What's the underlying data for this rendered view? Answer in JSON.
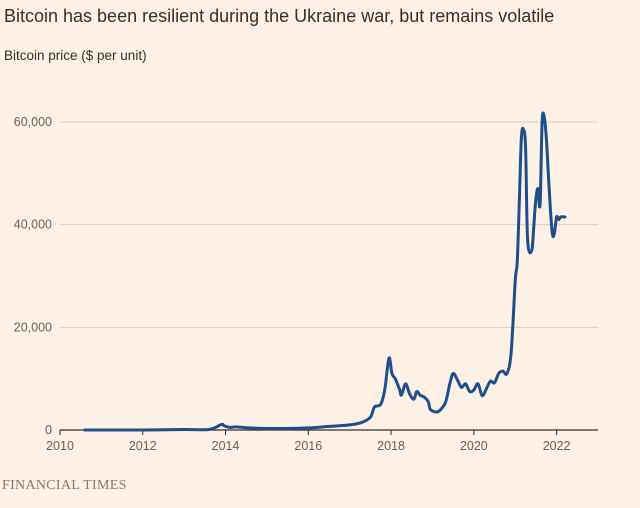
{
  "title": "Bitcoin has been resilient during the Ukraine war, but remains volatile",
  "subtitle": "Bitcoin price ($ per unit)",
  "source": "FINANCIAL TIMES",
  "chart_data": {
    "type": "line",
    "title": "Bitcoin has been resilient during the Ukraine war, but remains volatile",
    "ylabel": "Bitcoin price ($ per unit)",
    "xlabel": "",
    "xlim": [
      2010,
      2023
    ],
    "ylim": [
      0,
      60000
    ],
    "x_ticks": [
      "2010",
      "2012",
      "2014",
      "2016",
      "2018",
      "2020",
      "2022"
    ],
    "y_ticks": [
      "0",
      "20,000",
      "40,000",
      "60,000"
    ],
    "grid": true,
    "line_color": "#1f4e8c",
    "series": [
      {
        "x": [
          2010.6,
          2011.0,
          2012.0,
          2013.0,
          2013.6,
          2013.9,
          2013.95,
          2014.1,
          2014.25,
          2014.6,
          2015.0,
          2015.5,
          2016.0,
          2016.5,
          2017.0,
          2017.3,
          2017.5,
          2017.6,
          2017.75,
          2017.85,
          2017.95,
          2018.02,
          2018.1,
          2018.2,
          2018.25,
          2018.35,
          2018.45,
          2018.55,
          2018.62,
          2018.7,
          2018.8,
          2018.9,
          2018.95,
          2019.1,
          2019.2,
          2019.32,
          2019.42,
          2019.5,
          2019.6,
          2019.7,
          2019.8,
          2019.9,
          2020.0,
          2020.1,
          2020.2,
          2020.3,
          2020.4,
          2020.5,
          2020.6,
          2020.7,
          2020.8,
          2020.9,
          2021.0,
          2021.05,
          2021.1,
          2021.15,
          2021.2,
          2021.25,
          2021.3,
          2021.4,
          2021.45,
          2021.5,
          2021.55,
          2021.6,
          2021.65,
          2021.7,
          2021.75,
          2021.8,
          2021.85,
          2021.9,
          2021.95,
          2022.0,
          2022.05,
          2022.1,
          2022.2
        ],
        "y": [
          0,
          1,
          5,
          100,
          100,
          1100,
          900,
          500,
          600,
          400,
          300,
          300,
          400,
          700,
          1000,
          1500,
          2500,
          4500,
          5000,
          8000,
          14000,
          11000,
          10000,
          8000,
          6800,
          9000,
          7000,
          6000,
          7500,
          6800,
          6400,
          5500,
          4000,
          3500,
          4000,
          5500,
          9000,
          11000,
          9800,
          8300,
          9000,
          7500,
          7800,
          9000,
          6700,
          8000,
          9500,
          9200,
          11000,
          11500,
          11000,
          15000,
          29000,
          33000,
          45000,
          57000,
          58500,
          55000,
          37000,
          35000,
          40000,
          45000,
          47000,
          44000,
          60000,
          61000,
          57000,
          50000,
          43000,
          38000,
          38500,
          41500,
          41000,
          41500,
          41500
        ]
      }
    ]
  }
}
